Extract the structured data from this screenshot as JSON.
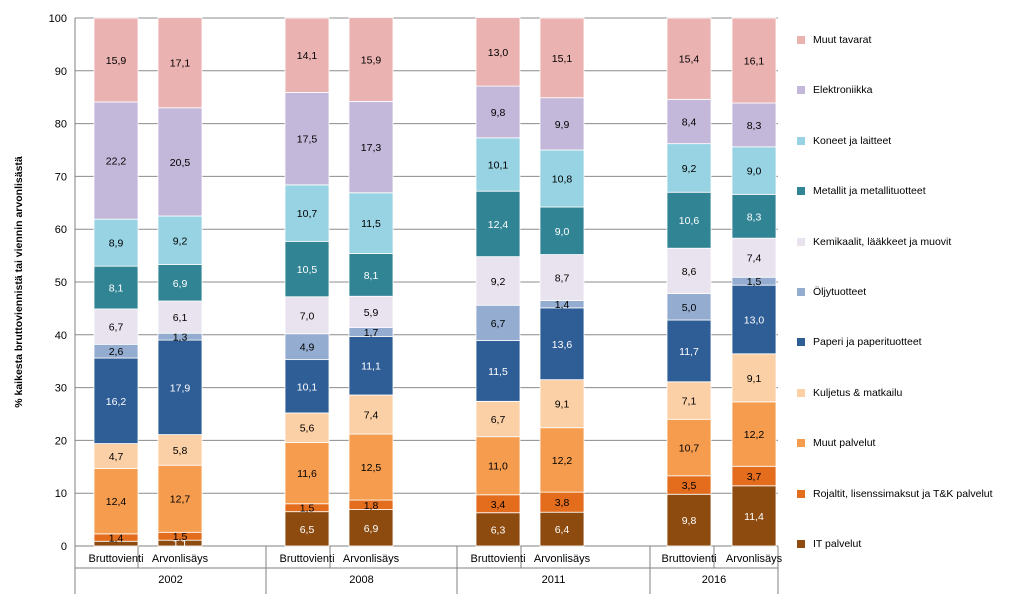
{
  "chart_data": {
    "type": "stacked-bar",
    "ylabel": "% kaikesta bruttoviennistä tai viennin arvonlisästä",
    "ylim": [
      0,
      100
    ],
    "yticks": [
      "0",
      "10",
      "20",
      "30",
      "40",
      "50",
      "60",
      "70",
      "80",
      "90",
      "100"
    ],
    "groups": [
      {
        "year": "2002",
        "bars": [
          {
            "label": "Bruttovienti",
            "values": [
              "0,9",
              "1,4",
              "12,4",
              "4,7",
              "16,2",
              "2,6",
              "6,7",
              "8,1",
              "8,9",
              "22,2",
              "15,9"
            ]
          },
          {
            "label": "Arvonlisäys",
            "values": [
              "1,1",
              "1,5",
              "12,7",
              "5,8",
              "17,9",
              "1,3",
              "6,1",
              "6,9",
              "9,2",
              "20,5",
              "17,1"
            ]
          }
        ]
      },
      {
        "year": "2008",
        "bars": [
          {
            "label": "Bruttovienti",
            "values": [
              "6,5",
              "1,5",
              "11,6",
              "5,6",
              "10,1",
              "4,9",
              "7,0",
              "10,5",
              "10,7",
              "17,5",
              "14,1"
            ]
          },
          {
            "label": "Arvonlisäys",
            "values": [
              "6,9",
              "1,8",
              "12,5",
              "7,4",
              "11,1",
              "1,7",
              "5,9",
              "8,1",
              "11,5",
              "17,3",
              "15,9"
            ]
          }
        ]
      },
      {
        "year": "2011",
        "bars": [
          {
            "label": "Bruttovienti",
            "values": [
              "6,3",
              "3,4",
              "11,0",
              "6,7",
              "11,5",
              "6,7",
              "9,2",
              "12,4",
              "10,1",
              "9,8",
              "13,0"
            ]
          },
          {
            "label": "Arvonlisäys",
            "values": [
              "6,4",
              "3,8",
              "12,2",
              "9,1",
              "13,6",
              "1,4",
              "8,7",
              "9,0",
              "10,8",
              "9,9",
              "15,1"
            ]
          }
        ]
      },
      {
        "year": "2016",
        "bars": [
          {
            "label": "Bruttovienti",
            "values": [
              "9,8",
              "3,5",
              "10,7",
              "7,1",
              "11,7",
              "5,0",
              "8,6",
              "10,6",
              "9,2",
              "8,4",
              "15,4"
            ]
          },
          {
            "label": "Arvonlisäys",
            "values": [
              "11,4",
              "3,7",
              "12,2",
              "9,1",
              "13,0",
              "1,5",
              "7,4",
              "8,3",
              "9,0",
              "8,3",
              "16,1"
            ]
          }
        ]
      }
    ],
    "series": [
      {
        "name": "IT palvelut",
        "color": "#8e4b10"
      },
      {
        "name": "Rojaltit, lisenssimaksut ja T&K palvelut",
        "color": "#e36c1d"
      },
      {
        "name": "Muut palvelut",
        "color": "#f59c4f"
      },
      {
        "name": "Kuljetus & matkailu",
        "color": "#fcd0a6"
      },
      {
        "name": "Paperi ja paperituotteet",
        "color": "#2f5d95"
      },
      {
        "name": "Öljytuotteet",
        "color": "#93acd0"
      },
      {
        "name": "Kemikaalit, lääkkeet ja muovit",
        "color": "#e8e3ee"
      },
      {
        "name": "Metallit ja metallituotteet",
        "color": "#318494"
      },
      {
        "name": "Koneet ja laitteet",
        "color": "#97d3e2"
      },
      {
        "name": "Elektroniikka",
        "color": "#c3b8d9"
      },
      {
        "name": "Muut tavarat",
        "color": "#ebb2b2"
      }
    ],
    "legend_order": [
      "Muut tavarat",
      "Elektroniikka",
      "Koneet ja laitteet",
      "Metallit ja metallituotteet",
      "Kemikaalit, lääkkeet ja muovit",
      "Öljytuotteet",
      "Paperi ja paperituotteet",
      "Kuljetus & matkailu",
      "Muut palvelut",
      "Rojaltit, lisenssimaksut ja T&K palvelut",
      "IT palvelut"
    ],
    "legend_position": "right"
  }
}
